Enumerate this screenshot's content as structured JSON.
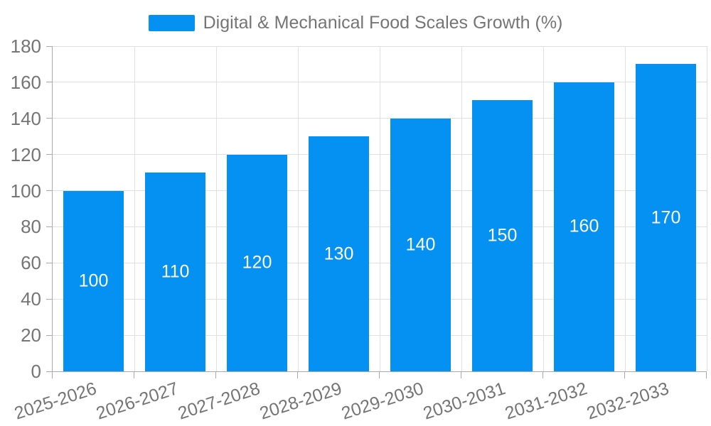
{
  "chart_data": {
    "type": "bar",
    "title": "Digital & Mechanical Food Scales Growth (%)",
    "categories": [
      "2025-2026",
      "2026-2027",
      "2027-2028",
      "2028-2029",
      "2029-2030",
      "2030-2031",
      "2031-2032",
      "2032-2033"
    ],
    "values": [
      100,
      110,
      120,
      130,
      140,
      150,
      160,
      170
    ],
    "yticks": [
      0,
      20,
      40,
      60,
      80,
      100,
      120,
      140,
      160,
      180
    ],
    "ylim": [
      0,
      180
    ],
    "xlabel": "",
    "ylabel": "",
    "grid": true,
    "legend_position": "top-center",
    "legend": {
      "label": "Digital & Mechanical Food Scales Growth (%)"
    },
    "colors": {
      "bar": "#0591f2",
      "bar_label": "#ffffff",
      "axis_text": "#757575",
      "grid_line": "#e0e0e0",
      "axis_line": "#aaaaaa",
      "background": "#ffffff"
    }
  }
}
